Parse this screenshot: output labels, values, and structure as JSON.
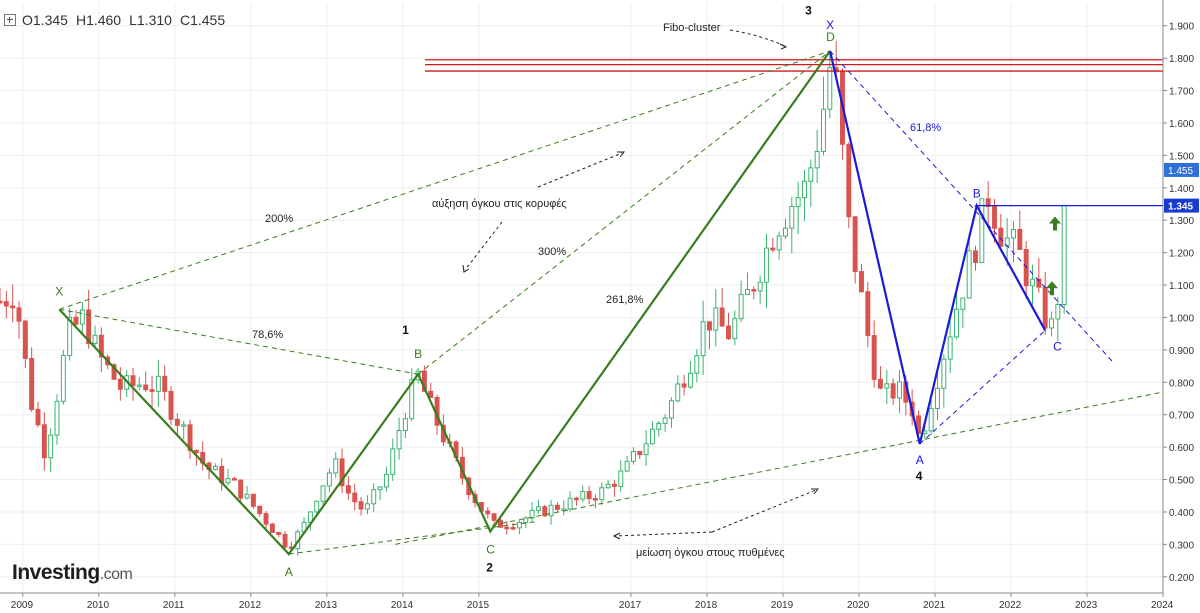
{
  "header": {
    "ohlc": [
      {
        "label": "O",
        "value": "1.345"
      },
      {
        "label": "H",
        "value": "1.460"
      },
      {
        "label": "L",
        "value": "1.310"
      },
      {
        "label": "C",
        "value": "1.455"
      }
    ]
  },
  "logo": {
    "brand": "Investing",
    "tld": ".com"
  },
  "colors": {
    "up": "#3cb371",
    "down": "#d9534f",
    "green_pattern": "#3a7d1f",
    "blue_pattern": "#1a1adb",
    "resistance": "#d11a1a",
    "last_price_bg": "#2f6fd6",
    "last_price2_bg": "#1a3bd1"
  },
  "chart_data": {
    "type": "candlestick",
    "interval": "monthly",
    "y_range": [
      0.15,
      1.97
    ],
    "x_range": [
      2008.7,
      2024.0
    ],
    "grid": true,
    "y_ticks": [
      "1.900",
      "1.800",
      "1.700",
      "1.600",
      "1.500",
      "1.400",
      "1.300",
      "1.200",
      "1.100",
      "1.000",
      "0.900",
      "0.800",
      "0.700",
      "0.600",
      "0.500",
      "0.400",
      "0.300",
      "0.200"
    ],
    "x_ticks": [
      {
        "label": "2009",
        "t": 2009.0
      },
      {
        "label": "2010",
        "t": 2010.0
      },
      {
        "label": "2011",
        "t": 2011.0
      },
      {
        "label": "2012",
        "t": 2012.0
      },
      {
        "label": "2013",
        "t": 2013.0
      },
      {
        "label": "2014",
        "t": 2014.0
      },
      {
        "label": "2015",
        "t": 2015.0
      },
      {
        "label": "2017",
        "t": 2017.0
      },
      {
        "label": "2018",
        "t": 2018.0
      },
      {
        "label": "2019",
        "t": 2019.0
      },
      {
        "label": "2020",
        "t": 2020.0
      },
      {
        "label": "2021",
        "t": 2021.0
      },
      {
        "label": "2022",
        "t": 2022.0
      },
      {
        "label": "2023",
        "t": 2023.0
      },
      {
        "label": "2024",
        "t": 2024.0
      }
    ],
    "price_path": [
      [
        2008.7,
        1.05
      ],
      [
        2008.9,
        1.08
      ],
      [
        2009.1,
        0.75
      ],
      [
        2009.3,
        0.58
      ],
      [
        2009.6,
        0.95
      ],
      [
        2009.8,
        1.0
      ],
      [
        2010.0,
        0.88
      ],
      [
        2010.3,
        0.78
      ],
      [
        2010.6,
        0.8
      ],
      [
        2010.8,
        0.78
      ],
      [
        2011.1,
        0.66
      ],
      [
        2011.4,
        0.54
      ],
      [
        2011.8,
        0.48
      ],
      [
        2012.1,
        0.4
      ],
      [
        2012.5,
        0.29
      ],
      [
        2012.7,
        0.36
      ],
      [
        2012.9,
        0.47
      ],
      [
        2013.1,
        0.55
      ],
      [
        2013.3,
        0.45
      ],
      [
        2013.5,
        0.4
      ],
      [
        2013.8,
        0.52
      ],
      [
        2014.0,
        0.7
      ],
      [
        2014.2,
        0.82
      ],
      [
        2014.4,
        0.7
      ],
      [
        2014.6,
        0.6
      ],
      [
        2014.8,
        0.5
      ],
      [
        2015.0,
        0.42
      ],
      [
        2015.2,
        0.36
      ],
      [
        2015.5,
        0.37
      ],
      [
        2015.8,
        0.4
      ],
      [
        2016.2,
        0.43
      ],
      [
        2016.6,
        0.46
      ],
      [
        2016.9,
        0.52
      ],
      [
        2017.2,
        0.62
      ],
      [
        2017.5,
        0.72
      ],
      [
        2017.8,
        0.88
      ],
      [
        2018.0,
        1.0
      ],
      [
        2018.3,
        0.95
      ],
      [
        2018.6,
        1.1
      ],
      [
        2018.9,
        1.28
      ],
      [
        2019.1,
        1.35
      ],
      [
        2019.3,
        1.4
      ],
      [
        2019.5,
        1.6
      ],
      [
        2019.65,
        1.82
      ],
      [
        2019.75,
        1.6
      ],
      [
        2019.85,
        1.3
      ],
      [
        2020.0,
        1.1
      ],
      [
        2020.15,
        0.9
      ],
      [
        2020.3,
        0.75
      ],
      [
        2020.5,
        0.78
      ],
      [
        2020.7,
        0.72
      ],
      [
        2020.8,
        0.62
      ],
      [
        2020.95,
        0.75
      ],
      [
        2021.1,
        0.88
      ],
      [
        2021.3,
        1.05
      ],
      [
        2021.5,
        1.2
      ],
      [
        2021.65,
        1.33
      ],
      [
        2021.7,
        1.38
      ],
      [
        2021.9,
        1.25
      ],
      [
        2022.1,
        1.2
      ],
      [
        2022.3,
        1.08
      ],
      [
        2022.45,
        1.0
      ],
      [
        2022.55,
        0.96
      ],
      [
        2022.65,
        1.12
      ],
      [
        2022.75,
        1.455
      ]
    ],
    "resistance_levels": [
      1.795,
      1.78,
      1.76
    ],
    "horizontal_levels": [
      {
        "price": 1.345,
        "label": "1.345"
      }
    ],
    "last_price": {
      "price": 1.455,
      "label": "1.455"
    },
    "green_pattern_points": [
      {
        "id": "X",
        "t": 2009.48,
        "p": 1.025
      },
      {
        "id": "A",
        "t": 2012.5,
        "p": 0.27
      },
      {
        "id": "B",
        "t": 2014.2,
        "p": 0.825
      },
      {
        "id": "C",
        "t": 2015.15,
        "p": 0.34
      },
      {
        "id": "D",
        "t": 2019.62,
        "p": 1.822
      }
    ],
    "blue_pattern_points": [
      {
        "id": "X",
        "t": 2019.62,
        "p": 1.822
      },
      {
        "id": "A",
        "t": 2020.8,
        "p": 0.61
      },
      {
        "id": "B",
        "t": 2021.55,
        "p": 1.345
      },
      {
        "id": "C",
        "t": 2022.45,
        "p": 0.96
      }
    ],
    "fib_labels": {
      "r786": "78,6%",
      "r200": "200%",
      "r300": "300%",
      "r2618": "261,8%",
      "r618": "61,8%"
    },
    "wave_labels": {
      "w1": "1",
      "w2": "2",
      "w3": "3",
      "w4": "4"
    },
    "annotations": {
      "fibo_cluster": "Fibo-cluster",
      "volume_up": "αύξηση όγκου στις κορυφές",
      "volume_down": "μείωση όγκου στους πυθμένες"
    }
  }
}
